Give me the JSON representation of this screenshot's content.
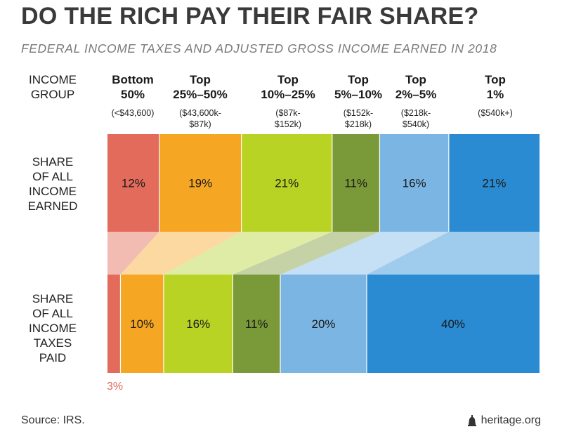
{
  "title": "DO THE RICH PAY THEIR FAIR SHARE?",
  "subtitle": "FEDERAL INCOME TAXES AND ADJUSTED GROSS INCOME EARNED IN 2018",
  "row_labels": {
    "group": "INCOME\nGROUP",
    "income": "SHARE\nOF ALL\nINCOME\nEARNED",
    "taxes": "SHARE\nOF ALL\nINCOME\nTAXES\nPAID"
  },
  "groups": [
    {
      "name": "Bottom\n50%",
      "range": "(<$43,600)"
    },
    {
      "name": "Top\n25%–50%",
      "range": "($43,600k-\n$87k)"
    },
    {
      "name": "Top\n10%–25%",
      "range": "($87k-\n$152k)"
    },
    {
      "name": "Top\n5%–10%",
      "range": "($152k-\n$218k)"
    },
    {
      "name": "Top\n2%–5%",
      "range": "($218k-\n$540k)"
    },
    {
      "name": "Top\n1%",
      "range": "($540k+)"
    }
  ],
  "chart_data": {
    "type": "bar",
    "categories": [
      "Bottom 50%",
      "Top 25%–50%",
      "Top 10%–25%",
      "Top 5%–10%",
      "Top 2%–5%",
      "Top 1%"
    ],
    "series": [
      {
        "name": "SHARE OF ALL INCOME EARNED",
        "values": [
          12,
          19,
          21,
          11,
          16,
          21
        ],
        "labels": [
          "12%",
          "19%",
          "21%",
          "11%",
          "16%",
          "21%"
        ]
      },
      {
        "name": "SHARE OF ALL INCOME TAXES PAID",
        "values": [
          3,
          10,
          16,
          11,
          20,
          40
        ],
        "labels": [
          "3%",
          "10%",
          "16%",
          "11%",
          "20%",
          "40%"
        ]
      }
    ],
    "colors": [
      "#e26b5c",
      "#f5a623",
      "#b8d324",
      "#7a9a3a",
      "#7bb5e3",
      "#2a8bd2"
    ],
    "connector_colors": [
      "#f3bcb3",
      "#fbd9a0",
      "#dfeca5",
      "#c4d2a6",
      "#c5dff4",
      "#9fcbec"
    ]
  },
  "source": "Source: IRS.",
  "credit": "heritage.org"
}
